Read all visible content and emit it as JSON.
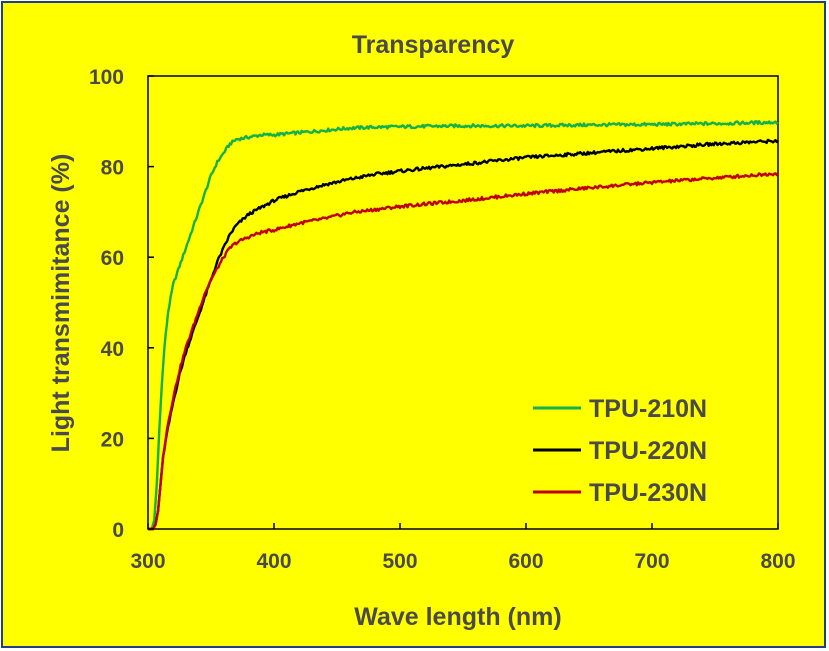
{
  "chart_data": {
    "type": "line",
    "title": "Transparency",
    "xlabel": "Wave length (nm)",
    "ylabel": "Light transmimitance (%)",
    "xlim": [
      300,
      800
    ],
    "ylim": [
      0,
      100
    ],
    "xticks": [
      300,
      400,
      500,
      600,
      700,
      800
    ],
    "yticks": [
      0,
      20,
      40,
      60,
      80,
      100
    ],
    "x_tick_labels": [
      "300",
      "400",
      "500",
      "600",
      "700",
      "800"
    ],
    "y_tick_labels": [
      "0",
      "20",
      "40",
      "60",
      "80",
      "100"
    ],
    "grid": false,
    "legend_position": "bottom-right",
    "series": [
      {
        "name": "TPU-210N",
        "color": "#13b04b",
        "points": [
          [
            300,
            0
          ],
          [
            303,
            0
          ],
          [
            305,
            2
          ],
          [
            307,
            10
          ],
          [
            309,
            22
          ],
          [
            311,
            32
          ],
          [
            313,
            40
          ],
          [
            316,
            48
          ],
          [
            320,
            54
          ],
          [
            325,
            58
          ],
          [
            330,
            62
          ],
          [
            335,
            66
          ],
          [
            340,
            70
          ],
          [
            345,
            74
          ],
          [
            350,
            78
          ],
          [
            355,
            81
          ],
          [
            360,
            83
          ],
          [
            365,
            85
          ],
          [
            370,
            86
          ],
          [
            380,
            86.5
          ],
          [
            390,
            87
          ],
          [
            400,
            87
          ],
          [
            420,
            87.5
          ],
          [
            440,
            88
          ],
          [
            460,
            88.5
          ],
          [
            480,
            88.7
          ],
          [
            500,
            88.8
          ],
          [
            550,
            89
          ],
          [
            600,
            89
          ],
          [
            650,
            89.2
          ],
          [
            700,
            89.3
          ],
          [
            750,
            89.5
          ],
          [
            800,
            89.8
          ]
        ]
      },
      {
        "name": "TPU-220N",
        "color": "#000000",
        "points": [
          [
            300,
            0
          ],
          [
            304,
            0
          ],
          [
            306,
            1
          ],
          [
            308,
            4
          ],
          [
            310,
            10
          ],
          [
            312,
            16
          ],
          [
            315,
            21
          ],
          [
            320,
            28
          ],
          [
            325,
            34
          ],
          [
            330,
            39
          ],
          [
            335,
            43
          ],
          [
            340,
            47
          ],
          [
            345,
            51
          ],
          [
            350,
            55
          ],
          [
            355,
            59
          ],
          [
            360,
            62
          ],
          [
            365,
            65
          ],
          [
            370,
            67
          ],
          [
            380,
            69.5
          ],
          [
            390,
            71
          ],
          [
            400,
            72.5
          ],
          [
            420,
            74.5
          ],
          [
            440,
            76
          ],
          [
            460,
            77.2
          ],
          [
            480,
            78.3
          ],
          [
            500,
            79
          ],
          [
            550,
            80.5
          ],
          [
            600,
            82
          ],
          [
            650,
            83
          ],
          [
            700,
            84
          ],
          [
            750,
            85
          ],
          [
            800,
            85.7
          ]
        ]
      },
      {
        "name": "TPU-230N",
        "color": "#c00000",
        "points": [
          [
            300,
            0
          ],
          [
            304,
            0
          ],
          [
            306,
            1
          ],
          [
            308,
            4
          ],
          [
            310,
            10
          ],
          [
            312,
            16
          ],
          [
            315,
            22
          ],
          [
            320,
            29
          ],
          [
            325,
            35
          ],
          [
            330,
            40
          ],
          [
            335,
            44
          ],
          [
            340,
            48
          ],
          [
            345,
            52
          ],
          [
            350,
            55
          ],
          [
            355,
            57.5
          ],
          [
            360,
            60
          ],
          [
            365,
            62
          ],
          [
            370,
            63.2
          ],
          [
            380,
            64.5
          ],
          [
            390,
            65.5
          ],
          [
            400,
            66
          ],
          [
            420,
            67.5
          ],
          [
            440,
            68.5
          ],
          [
            460,
            69.8
          ],
          [
            480,
            70.5
          ],
          [
            500,
            71.2
          ],
          [
            550,
            72.5
          ],
          [
            600,
            74
          ],
          [
            650,
            75.3
          ],
          [
            700,
            76.5
          ],
          [
            750,
            77.5
          ],
          [
            800,
            78.5
          ]
        ]
      }
    ]
  }
}
